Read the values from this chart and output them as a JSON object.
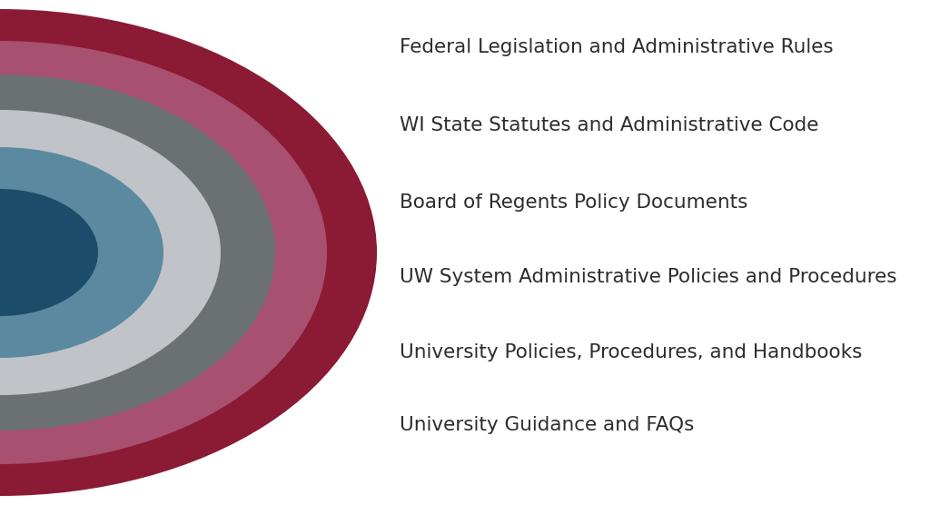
{
  "labels": [
    "Federal Legislation and Administrative Rules",
    "WI State Statutes and Administrative Code",
    "Board of Regents Policy Documents",
    "UW System Administrative Policies and Procedures",
    "University Policies, Procedures, and Handbooks",
    "University Guidance and FAQs"
  ],
  "colors": [
    "#8B1A35",
    "#A85070",
    "#6B7073",
    "#C0C4C8",
    "#5B8AA0",
    "#1B4D6A"
  ],
  "background_color": "#ffffff",
  "text_color": "#2d2d2d",
  "font_size": 15.5,
  "font_weight": "normal"
}
